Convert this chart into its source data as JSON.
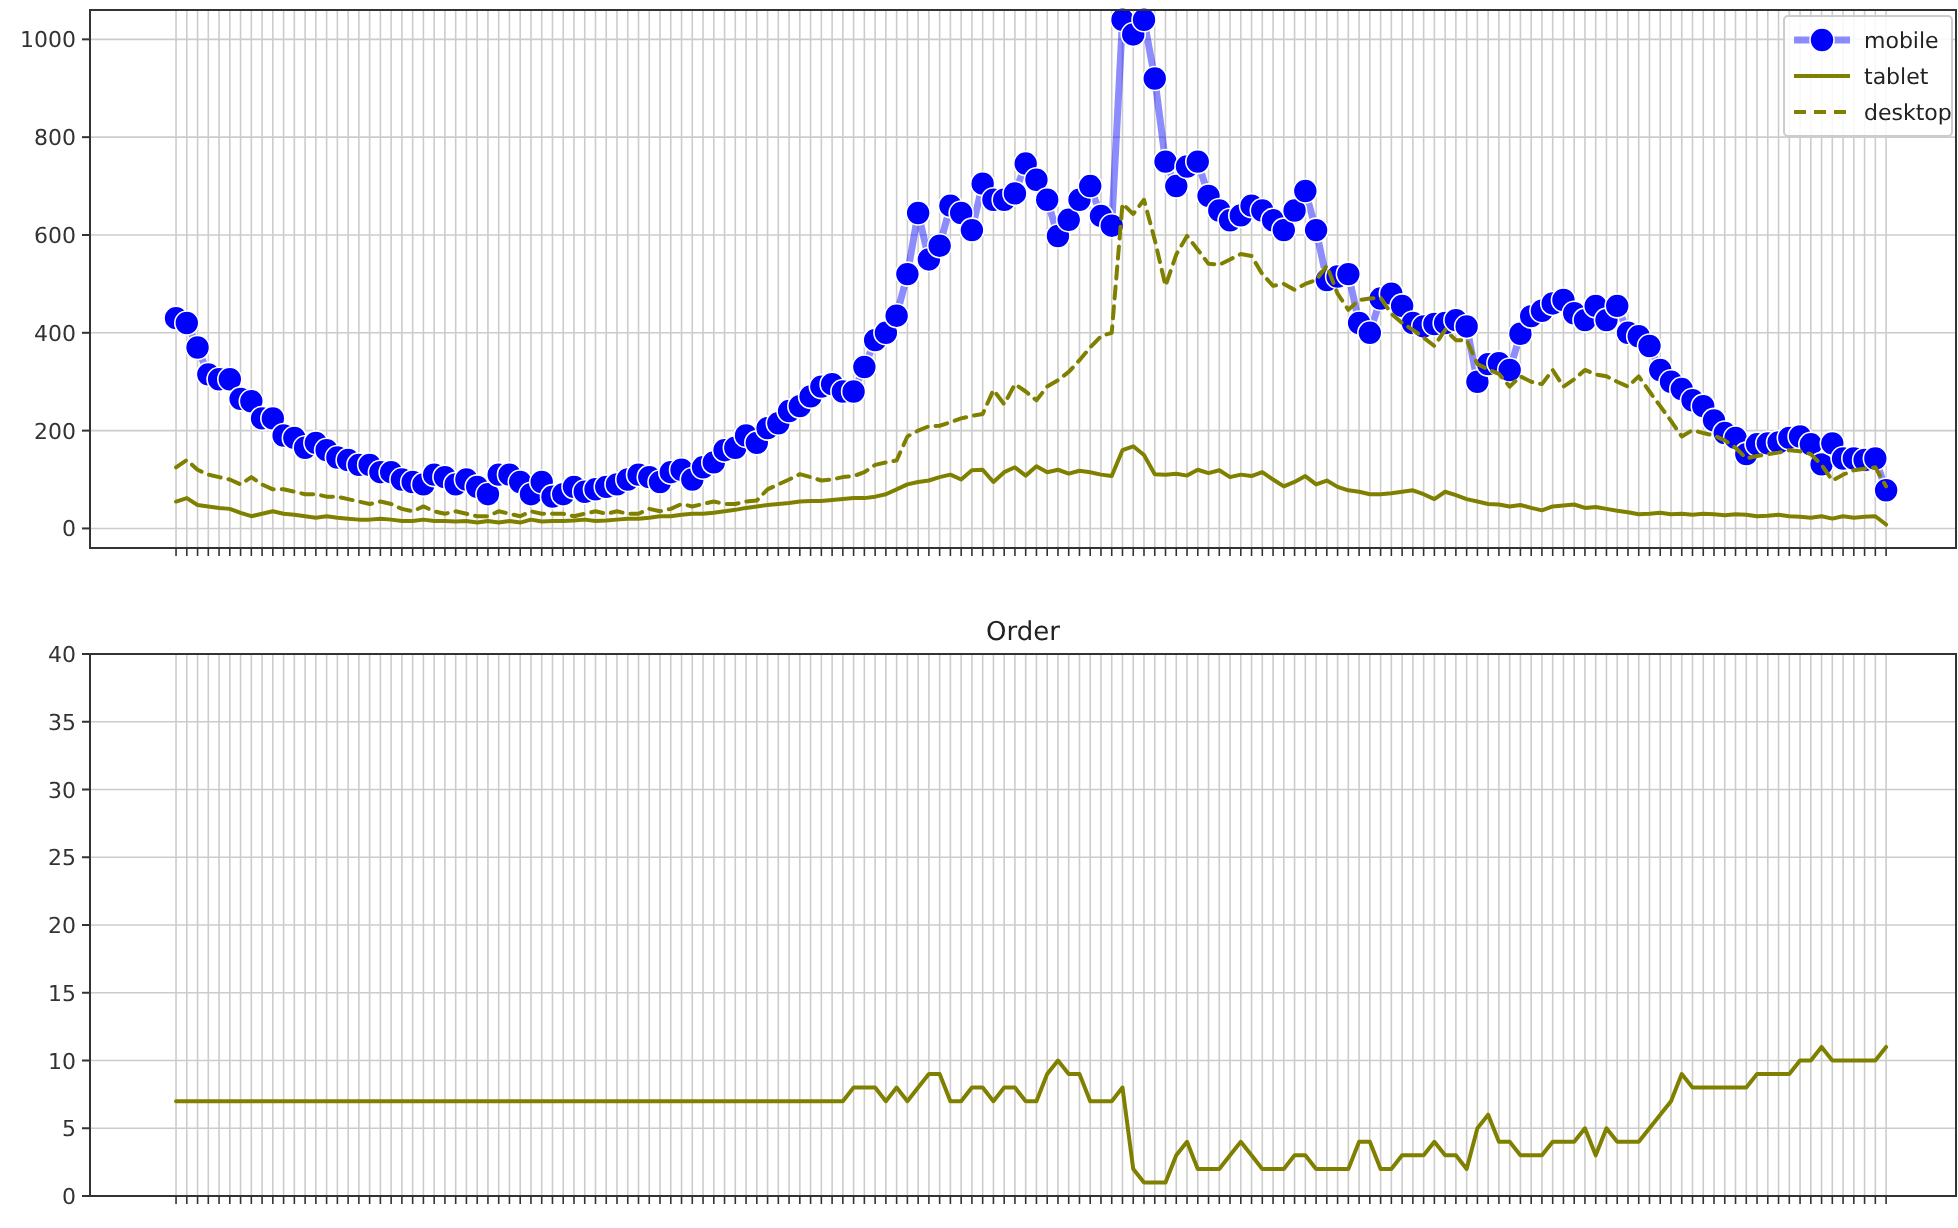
{
  "chart_data": [
    {
      "type": "line",
      "categories": [
        null,
        null,
        null,
        null,
        null,
        null,
        null,
        null,
        null,
        null,
        null,
        null,
        null,
        null,
        null,
        null,
        null,
        null,
        null,
        null,
        null,
        null,
        null,
        null,
        null,
        null,
        null,
        null,
        null,
        null,
        null,
        null,
        null,
        null,
        null,
        null,
        null,
        null,
        null,
        null,
        null,
        null,
        null,
        null,
        null,
        null,
        null,
        null,
        null,
        null,
        null,
        null,
        null,
        null,
        null,
        null,
        null,
        null,
        null,
        null,
        null,
        null,
        null,
        null,
        null,
        null,
        null,
        null,
        null,
        null,
        null,
        null,
        null,
        null,
        null,
        null,
        null,
        null,
        null,
        null,
        null,
        null,
        null,
        null,
        null,
        null,
        null,
        null,
        null,
        null,
        null,
        null,
        null,
        null,
        null,
        null,
        null,
        null,
        null,
        null,
        null,
        null,
        null,
        null,
        null,
        null,
        null,
        null,
        null,
        null,
        null,
        null,
        null,
        null,
        null,
        null,
        null,
        null,
        null,
        null,
        null,
        null,
        null,
        null,
        null,
        null,
        null,
        null,
        null,
        null,
        null,
        null,
        null,
        null,
        null,
        null,
        null,
        null,
        null,
        null,
        null,
        null,
        null,
        null,
        null,
        null,
        null,
        null,
        null,
        null,
        null,
        null,
        null,
        null,
        null,
        null,
        null,
        null,
        null,
        null
      ],
      "series": [
        {
          "name": "mobile",
          "color": "#0000ff",
          "marker": "circle",
          "line_style": "solid",
          "values": [
            430,
            420,
            370,
            315,
            305,
            305,
            265,
            260,
            225,
            225,
            190,
            185,
            165,
            175,
            160,
            145,
            140,
            130,
            130,
            115,
            115,
            100,
            95,
            90,
            110,
            105,
            90,
            100,
            85,
            70,
            110,
            110,
            95,
            70,
            95,
            65,
            70,
            85,
            75,
            80,
            85,
            90,
            100,
            110,
            105,
            95,
            115,
            120,
            100,
            125,
            135,
            160,
            165,
            190,
            175,
            205,
            215,
            240,
            250,
            270,
            290,
            295,
            280,
            280,
            330,
            385,
            400,
            435,
            520,
            645,
            550,
            578,
            660,
            645,
            610,
            705,
            672,
            672,
            685,
            746,
            713,
            672,
            598,
            631,
            672,
            700,
            639,
            619,
            1040,
            1010,
            1040,
            920,
            750,
            700,
            740,
            750,
            680,
            650,
            630,
            640,
            660,
            650,
            630,
            610,
            650,
            690,
            610,
            508,
            515,
            520,
            420,
            400,
            470,
            480,
            455,
            420,
            413,
            418,
            420,
            426,
            413,
            300,
            336,
            338,
            324,
            398,
            434,
            445,
            460,
            467,
            440,
            426,
            455,
            426,
            455,
            400,
            393,
            373,
            324,
            300,
            285,
            262,
            250,
            221,
            195,
            185,
            152,
            172,
            174,
            176,
            185,
            188,
            172,
            131,
            174,
            143,
            143,
            140,
            143,
            78
          ]
        },
        {
          "name": "tablet",
          "color": "#808000",
          "marker": "none",
          "line_style": "solid",
          "values": [
            55,
            62,
            48,
            45,
            42,
            40,
            32,
            25,
            30,
            35,
            30,
            28,
            25,
            22,
            25,
            22,
            20,
            18,
            18,
            20,
            18,
            15,
            15,
            18,
            15,
            15,
            14,
            15,
            12,
            15,
            12,
            15,
            12,
            18,
            14,
            15,
            15,
            16,
            18,
            15,
            16,
            18,
            20,
            20,
            22,
            25,
            25,
            28,
            30,
            30,
            32,
            35,
            38,
            42,
            45,
            48,
            50,
            52,
            55,
            56,
            56,
            58,
            60,
            62,
            62,
            65,
            70,
            80,
            90,
            95,
            98,
            105,
            110,
            100,
            119,
            120,
            95,
            115,
            125,
            108,
            127,
            115,
            120,
            112,
            118,
            115,
            110,
            107,
            160,
            168,
            150,
            111,
            110,
            112,
            108,
            120,
            113,
            119,
            105,
            110,
            107,
            115,
            100,
            86,
            95,
            107,
            90,
            98,
            85,
            78,
            75,
            70,
            70,
            72,
            75,
            78,
            70,
            60,
            75,
            68,
            60,
            55,
            50,
            49,
            45,
            48,
            42,
            37,
            45,
            47,
            49,
            42,
            44,
            40,
            36,
            33,
            29,
            30,
            32,
            29,
            30,
            28,
            30,
            29,
            27,
            29,
            28,
            25,
            26,
            28,
            25,
            24,
            22,
            25,
            20,
            25,
            22,
            24,
            25,
            8
          ]
        },
        {
          "name": "desktop",
          "color": "#808000",
          "marker": "none",
          "line_style": "dashed",
          "values": [
            125,
            140,
            120,
            110,
            105,
            100,
            90,
            105,
            90,
            80,
            80,
            75,
            70,
            70,
            65,
            65,
            60,
            55,
            50,
            55,
            50,
            40,
            35,
            45,
            35,
            30,
            35,
            30,
            25,
            25,
            35,
            30,
            25,
            35,
            30,
            30,
            30,
            25,
            30,
            35,
            30,
            35,
            30,
            30,
            40,
            35,
            40,
            50,
            45,
            50,
            55,
            50,
            50,
            55,
            57,
            80,
            90,
            100,
            111,
            105,
            98,
            100,
            105,
            107,
            115,
            130,
            135,
            139,
            188,
            200,
            209,
            210,
            217,
            225,
            230,
            234,
            283,
            254,
            295,
            280,
            262,
            290,
            303,
            320,
            344,
            370,
            393,
            400,
            664,
            643,
            672,
            590,
            496,
            560,
            598,
            570,
            541,
            539,
            550,
            561,
            557,
            520,
            496,
            500,
            488,
            500,
            508,
            537,
            480,
            447,
            467,
            470,
            472,
            439,
            420,
            406,
            390,
            373,
            406,
            385,
            385,
            336,
            325,
            316,
            290,
            311,
            300,
            295,
            324,
            290,
            305,
            324,
            315,
            311,
            300,
            290,
            311,
            280,
            250,
            220,
            188,
            201,
            195,
            190,
            180,
            165,
            143,
            148,
            152,
            155,
            160,
            158,
            152,
            130,
            98,
            110,
            119,
            122,
            125,
            86
          ]
        }
      ],
      "ylim": [
        -40,
        1060
      ],
      "yticks": [
        0,
        200,
        400,
        600,
        800,
        1000
      ],
      "grid": true,
      "legend": "top right"
    },
    {
      "type": "line",
      "title": "Order",
      "categories": [
        null,
        null,
        null,
        null,
        null,
        null,
        null,
        null,
        null,
        null,
        null,
        null,
        null,
        null,
        null,
        null,
        null,
        null,
        null,
        null,
        null,
        null,
        null,
        null,
        null,
        null,
        null,
        null,
        null,
        null,
        null,
        null,
        null,
        null,
        null,
        null,
        null,
        null,
        null,
        null,
        null,
        null,
        null,
        null,
        null,
        null,
        null,
        null,
        null,
        null,
        null,
        null,
        null,
        null,
        null,
        null,
        null,
        null,
        null,
        null,
        null,
        null,
        null,
        null,
        null,
        null,
        null,
        null,
        null,
        null,
        null,
        null,
        null,
        null,
        null,
        null,
        null,
        null,
        null,
        null,
        null,
        null,
        null,
        null,
        null,
        null,
        null,
        null,
        null,
        null,
        null,
        null,
        null,
        null,
        null,
        null,
        null,
        null,
        null,
        null,
        null,
        null,
        null,
        null,
        null,
        null,
        null,
        null,
        null,
        null,
        null,
        null,
        null,
        null,
        null,
        null,
        null,
        null,
        null,
        null,
        null,
        null,
        null,
        null,
        null,
        null,
        null,
        null,
        null,
        null,
        null,
        null,
        null,
        null,
        null,
        null,
        null,
        null,
        null,
        null,
        null,
        null,
        null,
        null,
        null,
        null,
        null,
        null,
        null,
        null,
        null,
        null,
        null,
        null,
        null,
        null,
        null,
        null,
        null,
        null
      ],
      "series": [
        {
          "color": "#808000",
          "values": [
            7,
            7,
            7,
            7,
            7,
            7,
            7,
            7,
            7,
            7,
            7,
            7,
            7,
            7,
            7,
            7,
            7,
            7,
            7,
            7,
            7,
            7,
            7,
            7,
            7,
            7,
            7,
            7,
            7,
            7,
            7,
            7,
            7,
            7,
            7,
            7,
            7,
            7,
            7,
            7,
            7,
            7,
            7,
            7,
            7,
            7,
            7,
            7,
            7,
            7,
            7,
            7,
            7,
            7,
            7,
            7,
            7,
            7,
            7,
            7,
            7,
            7,
            7,
            8,
            8,
            8,
            7,
            8,
            7,
            8,
            9,
            9,
            7,
            7,
            8,
            8,
            7,
            8,
            8,
            7,
            7,
            9,
            10,
            9,
            9,
            7,
            7,
            7,
            8,
            2,
            1,
            1,
            1,
            3,
            4,
            2,
            2,
            2,
            3,
            4,
            3,
            2,
            2,
            2,
            3,
            3,
            2,
            2,
            2,
            2,
            4,
            4,
            2,
            2,
            3,
            3,
            3,
            4,
            3,
            3,
            2,
            5,
            6,
            4,
            4,
            3,
            3,
            3,
            4,
            4,
            4,
            5,
            3,
            5,
            4,
            4,
            4,
            5,
            6,
            7,
            9,
            8,
            8,
            8,
            8,
            8,
            8,
            9,
            9,
            9,
            9,
            10,
            10,
            11,
            10,
            10,
            10,
            10,
            10,
            11
          ]
        }
      ],
      "ylim": [
        0,
        40
      ],
      "yticks": [
        0,
        5,
        10,
        15,
        20,
        25,
        30,
        35,
        40
      ],
      "grid": true
    }
  ]
}
